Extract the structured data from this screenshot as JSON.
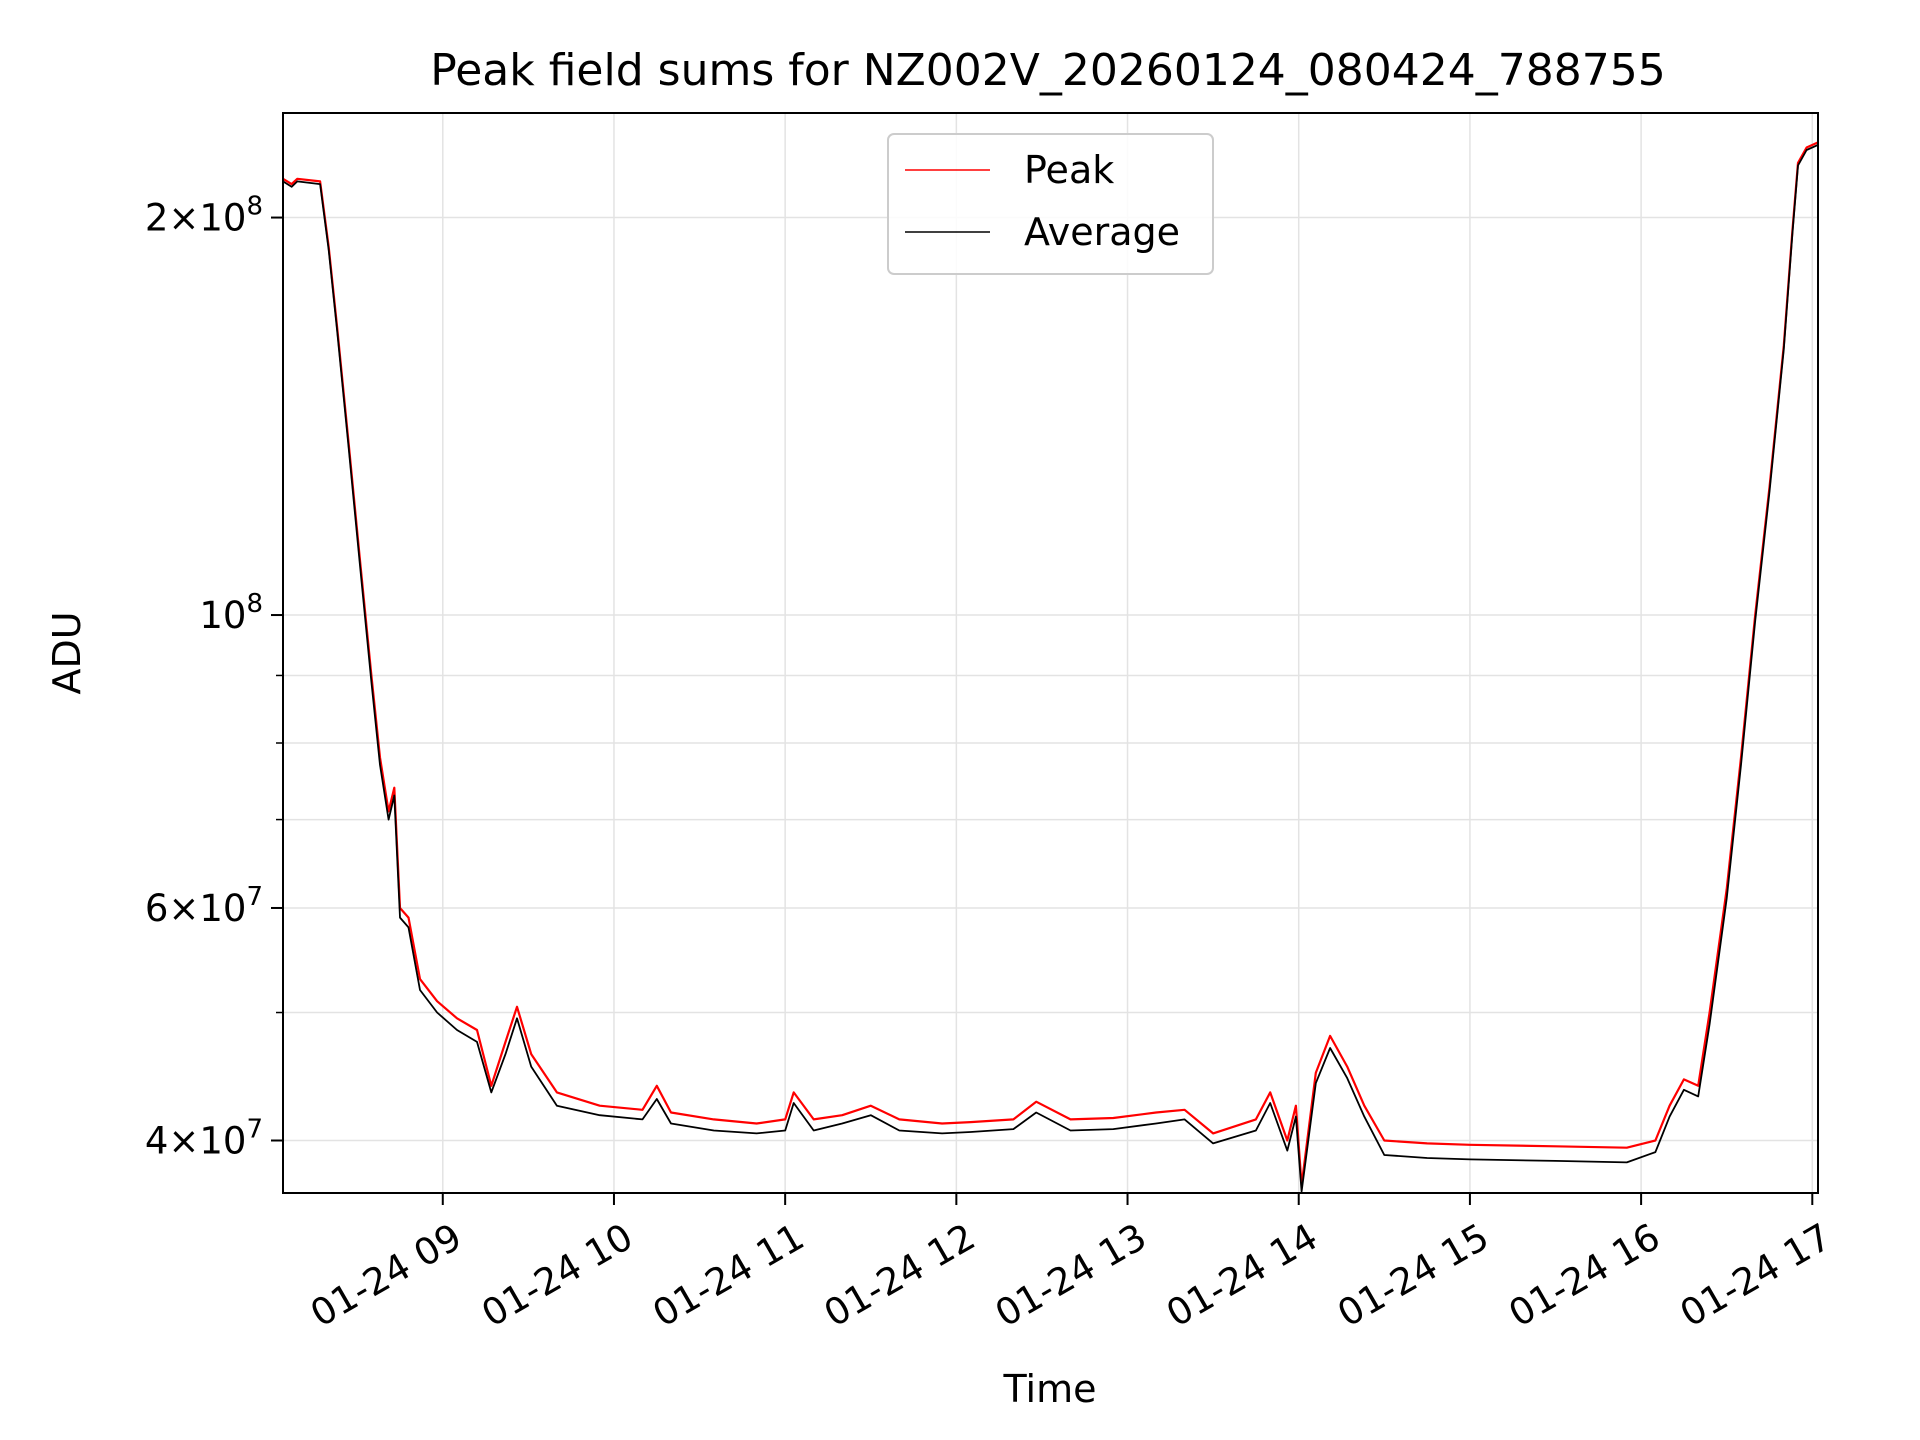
{
  "chart_data": {
    "type": "line",
    "title": "Peak field sums for NZ002V_20260124_080424_788755",
    "xlabel": "Time",
    "ylabel": "ADU",
    "yscale": "log",
    "xlim": [
      "2026-01-24 08:04",
      "2026-01-24 17:02"
    ],
    "ylim": [
      36500000,
      240000000
    ],
    "grid": true,
    "legend_position": "upper center",
    "x_ticks": [
      {
        "value": "2026-01-24 09:00",
        "label": "01-24 09"
      },
      {
        "value": "2026-01-24 10:00",
        "label": "01-24 10"
      },
      {
        "value": "2026-01-24 11:00",
        "label": "01-24 11"
      },
      {
        "value": "2026-01-24 12:00",
        "label": "01-24 12"
      },
      {
        "value": "2026-01-24 13:00",
        "label": "01-24 13"
      },
      {
        "value": "2026-01-24 14:00",
        "label": "01-24 14"
      },
      {
        "value": "2026-01-24 15:00",
        "label": "01-24 15"
      },
      {
        "value": "2026-01-24 16:00",
        "label": "01-24 16"
      },
      {
        "value": "2026-01-24 17:00",
        "label": "01-24 17"
      }
    ],
    "y_ticks": [
      {
        "value": 200000000,
        "mantissa": "2",
        "exponent": "8"
      },
      {
        "value": 100000000,
        "mantissa": "",
        "exponent": "8"
      },
      {
        "value": 60000000,
        "mantissa": "6",
        "exponent": "7"
      },
      {
        "value": 40000000,
        "mantissa": "4",
        "exponent": "7"
      }
    ],
    "y_minor_gridlines": [
      50000000,
      70000000,
      80000000,
      90000000
    ],
    "series": [
      {
        "name": "Peak",
        "color": "#ff0000",
        "points": [
          [
            "2026-01-24 08:04",
            214000000
          ],
          [
            "2026-01-24 08:07",
            212000000
          ],
          [
            "2026-01-24 08:09",
            214000000
          ],
          [
            "2026-01-24 08:17",
            213000000
          ],
          [
            "2026-01-24 08:20",
            190000000
          ],
          [
            "2026-01-24 08:23",
            165000000
          ],
          [
            "2026-01-24 08:27",
            135000000
          ],
          [
            "2026-01-24 08:31",
            110000000
          ],
          [
            "2026-01-24 08:35",
            90000000
          ],
          [
            "2026-01-24 08:38",
            78000000
          ],
          [
            "2026-01-24 08:41",
            71000000
          ],
          [
            "2026-01-24 08:43",
            74000000
          ],
          [
            "2026-01-24 08:45",
            60000000
          ],
          [
            "2026-01-24 08:48",
            59000000
          ],
          [
            "2026-01-24 08:52",
            53000000
          ],
          [
            "2026-01-24 08:58",
            51000000
          ],
          [
            "2026-01-24 09:05",
            49500000
          ],
          [
            "2026-01-24 09:12",
            48500000
          ],
          [
            "2026-01-24 09:17",
            44000000
          ],
          [
            "2026-01-24 09:22",
            47500000
          ],
          [
            "2026-01-24 09:26",
            50500000
          ],
          [
            "2026-01-24 09:31",
            46500000
          ],
          [
            "2026-01-24 09:40",
            43500000
          ],
          [
            "2026-01-24 09:55",
            42500000
          ],
          [
            "2026-01-24 10:10",
            42200000
          ],
          [
            "2026-01-24 10:15",
            44000000
          ],
          [
            "2026-01-24 10:20",
            42000000
          ],
          [
            "2026-01-24 10:35",
            41500000
          ],
          [
            "2026-01-24 10:50",
            41200000
          ],
          [
            "2026-01-24 11:00",
            41500000
          ],
          [
            "2026-01-24 11:03",
            43500000
          ],
          [
            "2026-01-24 11:10",
            41500000
          ],
          [
            "2026-01-24 11:20",
            41800000
          ],
          [
            "2026-01-24 11:30",
            42500000
          ],
          [
            "2026-01-24 11:40",
            41500000
          ],
          [
            "2026-01-24 11:55",
            41200000
          ],
          [
            "2026-01-24 12:05",
            41300000
          ],
          [
            "2026-01-24 12:20",
            41500000
          ],
          [
            "2026-01-24 12:28",
            42800000
          ],
          [
            "2026-01-24 12:40",
            41500000
          ],
          [
            "2026-01-24 12:55",
            41600000
          ],
          [
            "2026-01-24 13:10",
            42000000
          ],
          [
            "2026-01-24 13:20",
            42200000
          ],
          [
            "2026-01-24 13:30",
            40500000
          ],
          [
            "2026-01-24 13:45",
            41500000
          ],
          [
            "2026-01-24 13:50",
            43500000
          ],
          [
            "2026-01-24 13:56",
            40000000
          ],
          [
            "2026-01-24 13:59",
            42500000
          ],
          [
            "2026-01-24 14:01",
            37000000
          ],
          [
            "2026-01-24 14:06",
            45000000
          ],
          [
            "2026-01-24 14:11",
            48000000
          ],
          [
            "2026-01-24 14:17",
            45500000
          ],
          [
            "2026-01-24 14:23",
            42500000
          ],
          [
            "2026-01-24 14:30",
            40000000
          ],
          [
            "2026-01-24 14:45",
            39800000
          ],
          [
            "2026-01-24 15:00",
            39700000
          ],
          [
            "2026-01-24 15:30",
            39600000
          ],
          [
            "2026-01-24 15:55",
            39500000
          ],
          [
            "2026-01-24 16:05",
            40000000
          ],
          [
            "2026-01-24 16:10",
            42500000
          ],
          [
            "2026-01-24 16:15",
            44500000
          ],
          [
            "2026-01-24 16:20",
            44000000
          ],
          [
            "2026-01-24 16:24",
            50000000
          ],
          [
            "2026-01-24 16:30",
            62000000
          ],
          [
            "2026-01-24 16:35",
            78000000
          ],
          [
            "2026-01-24 16:40",
            100000000
          ],
          [
            "2026-01-24 16:45",
            125000000
          ],
          [
            "2026-01-24 16:50",
            160000000
          ],
          [
            "2026-01-24 16:53",
            195000000
          ],
          [
            "2026-01-24 16:55",
            220000000
          ],
          [
            "2026-01-24 16:58",
            226000000
          ],
          [
            "2026-01-24 17:02",
            228000000
          ]
        ]
      },
      {
        "name": "Average",
        "color": "#000000",
        "points": [
          [
            "2026-01-24 08:04",
            213000000
          ],
          [
            "2026-01-24 08:07",
            211000000
          ],
          [
            "2026-01-24 08:09",
            213000000
          ],
          [
            "2026-01-24 08:17",
            212000000
          ],
          [
            "2026-01-24 08:20",
            189000000
          ],
          [
            "2026-01-24 08:23",
            164000000
          ],
          [
            "2026-01-24 08:27",
            134000000
          ],
          [
            "2026-01-24 08:31",
            109000000
          ],
          [
            "2026-01-24 08:35",
            89000000
          ],
          [
            "2026-01-24 08:38",
            77000000
          ],
          [
            "2026-01-24 08:41",
            70000000
          ],
          [
            "2026-01-24 08:43",
            73000000
          ],
          [
            "2026-01-24 08:45",
            59000000
          ],
          [
            "2026-01-24 08:48",
            58000000
          ],
          [
            "2026-01-24 08:52",
            52000000
          ],
          [
            "2026-01-24 08:58",
            50000000
          ],
          [
            "2026-01-24 09:05",
            48500000
          ],
          [
            "2026-01-24 09:12",
            47500000
          ],
          [
            "2026-01-24 09:17",
            43500000
          ],
          [
            "2026-01-24 09:22",
            46500000
          ],
          [
            "2026-01-24 09:26",
            49500000
          ],
          [
            "2026-01-24 09:31",
            45500000
          ],
          [
            "2026-01-24 09:40",
            42500000
          ],
          [
            "2026-01-24 09:55",
            41800000
          ],
          [
            "2026-01-24 10:10",
            41500000
          ],
          [
            "2026-01-24 10:15",
            43000000
          ],
          [
            "2026-01-24 10:20",
            41200000
          ],
          [
            "2026-01-24 10:35",
            40700000
          ],
          [
            "2026-01-24 10:50",
            40500000
          ],
          [
            "2026-01-24 11:00",
            40700000
          ],
          [
            "2026-01-24 11:03",
            42700000
          ],
          [
            "2026-01-24 11:10",
            40700000
          ],
          [
            "2026-01-24 11:20",
            41200000
          ],
          [
            "2026-01-24 11:30",
            41800000
          ],
          [
            "2026-01-24 11:40",
            40700000
          ],
          [
            "2026-01-24 11:55",
            40500000
          ],
          [
            "2026-01-24 12:05",
            40600000
          ],
          [
            "2026-01-24 12:20",
            40800000
          ],
          [
            "2026-01-24 12:28",
            42000000
          ],
          [
            "2026-01-24 12:40",
            40700000
          ],
          [
            "2026-01-24 12:55",
            40800000
          ],
          [
            "2026-01-24 13:10",
            41200000
          ],
          [
            "2026-01-24 13:20",
            41500000
          ],
          [
            "2026-01-24 13:30",
            39800000
          ],
          [
            "2026-01-24 13:45",
            40700000
          ],
          [
            "2026-01-24 13:50",
            42700000
          ],
          [
            "2026-01-24 13:56",
            39300000
          ],
          [
            "2026-01-24 13:59",
            41700000
          ],
          [
            "2026-01-24 14:01",
            36600000
          ],
          [
            "2026-01-24 14:06",
            44200000
          ],
          [
            "2026-01-24 14:11",
            47000000
          ],
          [
            "2026-01-24 14:17",
            44600000
          ],
          [
            "2026-01-24 14:23",
            41700000
          ],
          [
            "2026-01-24 14:30",
            39000000
          ],
          [
            "2026-01-24 14:45",
            38800000
          ],
          [
            "2026-01-24 15:00",
            38700000
          ],
          [
            "2026-01-24 15:30",
            38600000
          ],
          [
            "2026-01-24 15:55",
            38500000
          ],
          [
            "2026-01-24 16:05",
            39200000
          ],
          [
            "2026-01-24 16:10",
            41700000
          ],
          [
            "2026-01-24 16:15",
            43700000
          ],
          [
            "2026-01-24 16:20",
            43200000
          ],
          [
            "2026-01-24 16:24",
            49000000
          ],
          [
            "2026-01-24 16:30",
            61000000
          ],
          [
            "2026-01-24 16:35",
            77000000
          ],
          [
            "2026-01-24 16:40",
            99000000
          ],
          [
            "2026-01-24 16:45",
            124000000
          ],
          [
            "2026-01-24 16:50",
            159000000
          ],
          [
            "2026-01-24 16:53",
            194000000
          ],
          [
            "2026-01-24 16:55",
            219000000
          ],
          [
            "2026-01-24 16:58",
            225000000
          ],
          [
            "2026-01-24 17:02",
            227000000
          ]
        ]
      }
    ]
  }
}
